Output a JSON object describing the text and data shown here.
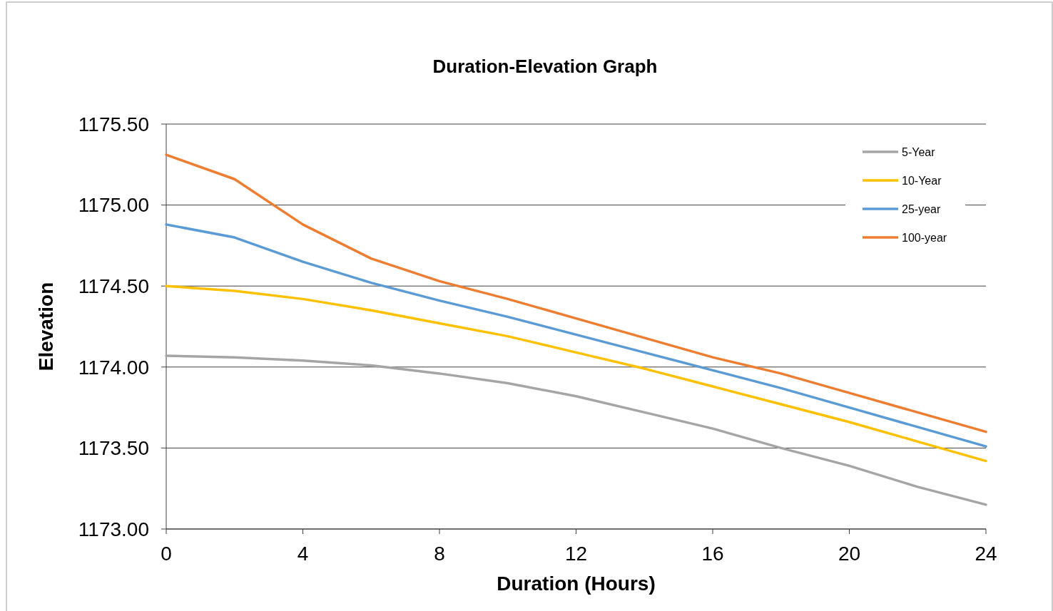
{
  "chart_data": {
    "type": "line",
    "title": "Duration-Elevation Graph",
    "xlabel": "Duration (Hours)",
    "ylabel": "Elevation",
    "x": [
      0,
      2,
      4,
      6,
      8,
      10,
      12,
      14,
      16,
      18,
      20,
      22,
      24
    ],
    "xlim": [
      0,
      24
    ],
    "xticks": [
      0,
      4,
      8,
      12,
      16,
      20,
      24
    ],
    "ylim": [
      1173,
      1175.5
    ],
    "yticks": [
      {
        "value": 1173,
        "label": "1173.00"
      },
      {
        "value": 1173.5,
        "label": "1173.50"
      },
      {
        "value": 1174,
        "label": "1174.00"
      },
      {
        "value": 1174.5,
        "label": "1174.50"
      },
      {
        "value": 1175,
        "label": "1175.00"
      },
      {
        "value": 1175.5,
        "label": "1175.50"
      }
    ],
    "grid": "y",
    "legend": "top right",
    "marker": "none",
    "line_style": "solid",
    "series": [
      {
        "name": "5-Year",
        "color": "#a5a5a5",
        "values": [
          1174.07,
          1174.06,
          1174.04,
          1174.01,
          1173.96,
          1173.9,
          1173.82,
          1173.72,
          1173.62,
          1173.5,
          1173.39,
          1173.26,
          1173.15
        ]
      },
      {
        "name": "10-Year",
        "color": "#ffc000",
        "values": [
          1174.5,
          1174.47,
          1174.42,
          1174.35,
          1174.27,
          1174.19,
          1174.09,
          1173.99,
          1173.88,
          1173.77,
          1173.66,
          1173.54,
          1173.42
        ]
      },
      {
        "name": "25-year",
        "color": "#5b9bd5",
        "values": [
          1174.88,
          1174.8,
          1174.65,
          1174.52,
          1174.41,
          1174.31,
          1174.2,
          1174.09,
          1173.98,
          1173.87,
          1173.75,
          1173.63,
          1173.51
        ]
      },
      {
        "name": "100-year",
        "color": "#ed7d31",
        "values": [
          1175.31,
          1175.16,
          1174.88,
          1174.67,
          1174.53,
          1174.42,
          1174.3,
          1174.18,
          1174.06,
          1173.96,
          1173.84,
          1173.72,
          1173.6
        ]
      }
    ]
  }
}
